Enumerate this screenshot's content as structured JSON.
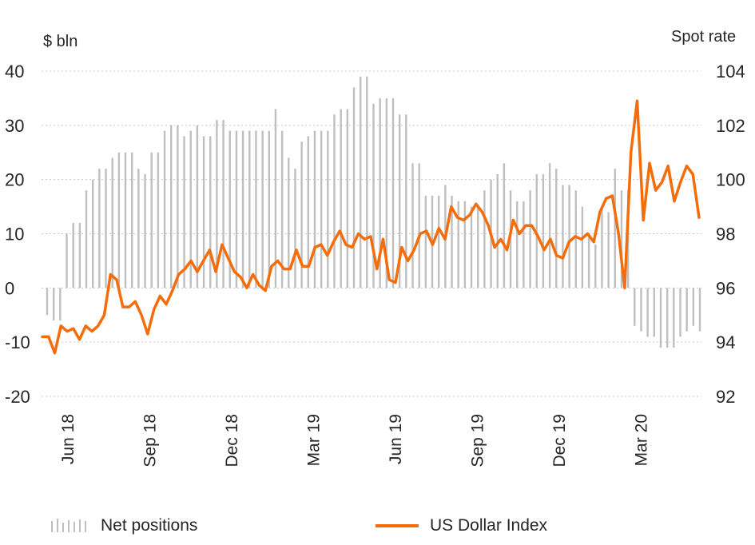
{
  "chart_data": {
    "type": "bar+line",
    "left_axis": {
      "label": "$ bln",
      "ylim": [
        -20,
        40
      ],
      "ticks": [
        40,
        30,
        20,
        10,
        0,
        -10,
        -20
      ]
    },
    "right_axis": {
      "label": "Spot rate",
      "ylim": [
        92,
        104
      ],
      "ticks": [
        104,
        102,
        100,
        98,
        96,
        94,
        92
      ]
    },
    "x_tick_labels": [
      "Jun 18",
      "Sep 18",
      "Dec 18",
      "Mar 19",
      "Jun 19",
      "Sep 19",
      "Dec 19",
      "Mar 20"
    ],
    "series": [
      {
        "name": "Net positions",
        "kind": "bar",
        "axis": "left",
        "color": "#bfbfbf",
        "values": [
          -5,
          -6,
          -6,
          10,
          12,
          12,
          18,
          20,
          22,
          22,
          24,
          25,
          25,
          25,
          22,
          21,
          25,
          25,
          29,
          30,
          30,
          28,
          29,
          30,
          28,
          28,
          31,
          31,
          29,
          29,
          29,
          29,
          29,
          29,
          29,
          33,
          29,
          24,
          22,
          27,
          28,
          29,
          29,
          29,
          32,
          33,
          33,
          37,
          39,
          39,
          34,
          35,
          35,
          35,
          32,
          32,
          23,
          23,
          17,
          17,
          17,
          19,
          17,
          16,
          16,
          15,
          15,
          18,
          20,
          21,
          23,
          18,
          16,
          16,
          18,
          21,
          21,
          23,
          22,
          19,
          19,
          18,
          15,
          10,
          8,
          15,
          14,
          22,
          18,
          18,
          -7,
          -8,
          -9,
          -9,
          -11,
          -11,
          -11,
          -9,
          -8,
          -7,
          -8
        ]
      },
      {
        "name": "US Dollar Index",
        "kind": "line",
        "axis": "right",
        "color": "#f46d0c",
        "values": [
          94.2,
          94.2,
          93.6,
          94.6,
          94.4,
          94.5,
          94.1,
          94.6,
          94.4,
          94.6,
          95.0,
          96.5,
          96.3,
          95.3,
          95.3,
          95.5,
          95.0,
          94.3,
          95.2,
          95.7,
          95.4,
          95.9,
          96.5,
          96.7,
          97.0,
          96.6,
          97.0,
          97.4,
          96.6,
          97.6,
          97.1,
          96.6,
          96.4,
          96.0,
          96.5,
          96.1,
          95.9,
          96.8,
          97.0,
          96.7,
          96.7,
          97.4,
          96.8,
          96.8,
          97.5,
          97.6,
          97.2,
          97.7,
          98.1,
          97.6,
          97.5,
          98.0,
          97.8,
          97.9,
          96.7,
          97.8,
          96.3,
          96.2,
          97.5,
          97.0,
          97.4,
          98.0,
          98.1,
          97.6,
          98.2,
          97.8,
          99.0,
          98.6,
          98.5,
          98.7,
          99.1,
          98.8,
          98.3,
          97.5,
          97.8,
          97.4,
          98.5,
          98.0,
          98.3,
          98.3,
          97.9,
          97.4,
          97.8,
          97.2,
          97.1,
          97.7,
          97.9,
          97.8,
          98.0,
          97.7,
          98.8,
          99.3,
          99.4,
          98.0,
          96.0,
          101.0,
          102.9,
          98.5,
          100.6,
          99.6,
          99.9,
          100.5,
          99.2,
          99.9,
          100.5,
          100.2,
          98.6
        ]
      }
    ],
    "grid": "horizontal dotted",
    "legend_position": "bottom"
  }
}
